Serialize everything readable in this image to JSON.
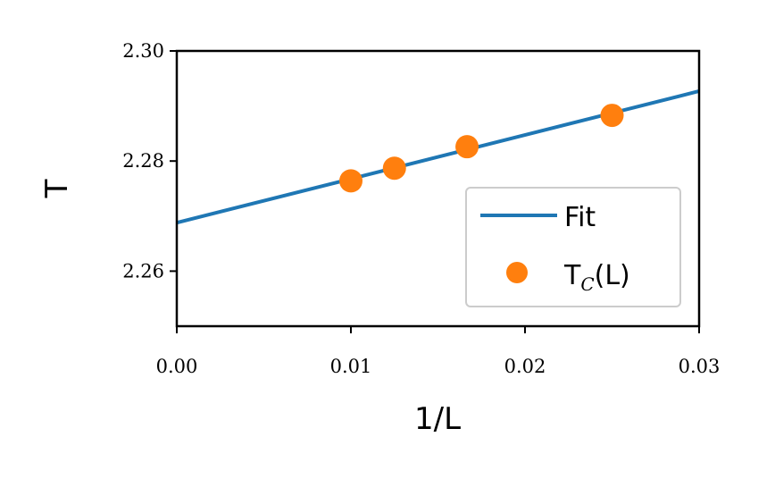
{
  "chart_data": {
    "type": "scatter",
    "xlabel": "1/L",
    "ylabel": "T",
    "xlim": [
      0.0,
      0.03
    ],
    "ylim": [
      2.25,
      2.3
    ],
    "x_ticks": [
      "0.00",
      "0.01",
      "0.02",
      "0.03"
    ],
    "y_ticks": [
      "2.26",
      "2.28",
      "2.30"
    ],
    "grid": false,
    "legend_position": "lower-right",
    "series": [
      {
        "name": "Fit",
        "kind": "line",
        "color": "#1f77b4",
        "x": [
          0.0,
          0.03
        ],
        "y": [
          2.2688,
          2.2927
        ]
      },
      {
        "name": "T_C(L)",
        "kind": "scatter",
        "color": "#ff7f0e",
        "x": [
          0.01,
          0.0125,
          0.01667,
          0.025
        ],
        "y": [
          2.2764,
          2.2787,
          2.2826,
          2.2883
        ]
      }
    ],
    "legend": {
      "fit_label": "Fit",
      "tc_main": "T",
      "tc_sub": "C",
      "tc_suffix": "(L)"
    }
  }
}
